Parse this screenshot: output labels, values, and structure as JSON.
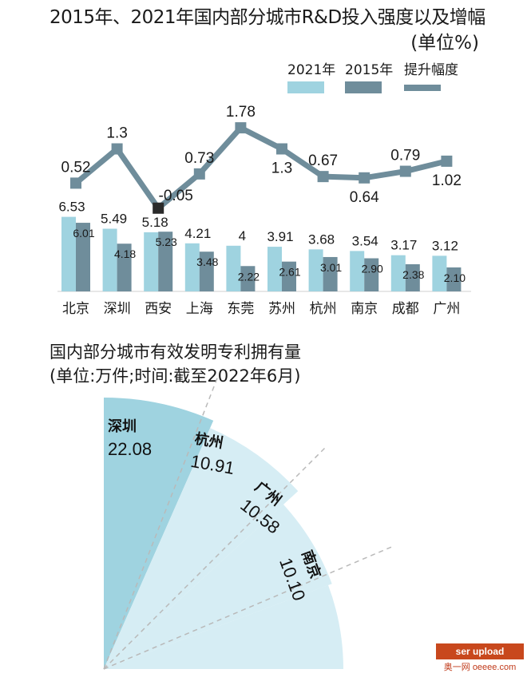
{
  "chart_data": [
    {
      "type": "bar",
      "title": "2015年、2021年国内部分城市R&D投入强度以及增幅",
      "unit": "(单位%)",
      "categories": [
        "北京",
        "深圳",
        "西安",
        "上海",
        "东莞",
        "苏州",
        "杭州",
        "南京",
        "成都",
        "广州"
      ],
      "series": [
        {
          "name": "2021年",
          "values": [
            6.53,
            5.49,
            5.18,
            4.21,
            4,
            3.91,
            3.68,
            3.54,
            3.17,
            3.12
          ],
          "labels": [
            "6.53",
            "5.49",
            "5.18",
            "4.21",
            "4",
            "3.91",
            "3.68",
            "3.54",
            "3.17",
            "3.12"
          ]
        },
        {
          "name": "2015年",
          "values": [
            6.01,
            4.18,
            5.23,
            3.48,
            2.22,
            2.61,
            3.01,
            2.9,
            2.38,
            2.1
          ],
          "labels": [
            "6.01",
            "4.18",
            "5.23",
            "3.48",
            "2.22",
            "2.61",
            "3.01",
            "2.90",
            "2.38",
            "2.10"
          ]
        },
        {
          "name": "提升幅度",
          "type": "line",
          "values": [
            0.52,
            1.3,
            -0.05,
            0.73,
            1.78,
            1.3,
            0.67,
            0.64,
            0.79,
            1.02
          ],
          "labels": [
            "0.52",
            "1.3",
            "-0.05",
            "0.73",
            "1.78",
            "1.3",
            "0.67",
            "0.64",
            "0.79",
            "1.02"
          ]
        }
      ],
      "legend_position": "top-right",
      "grid": false
    },
    {
      "type": "pie",
      "title": "国内部分城市有效发明专利拥有量",
      "unit": "(单位:万件;时间:截至2022年6月)",
      "categories": [
        "深圳",
        "杭州",
        "广州",
        "南京"
      ],
      "values": [
        22.08,
        10.91,
        10.58,
        10.1
      ],
      "labels": [
        "22.08",
        "10.91",
        "10.58",
        "10.10"
      ]
    }
  ],
  "colors": {
    "bar_2021": "#9fd3e0",
    "bar_2015": "#6f8d9b",
    "line": "#6f8d9b",
    "marker_negative": "#2b2b2b",
    "sector_dark": "#9fd3e0",
    "sector_light": "#d6edf4",
    "dashed_divider": "#b9b9b9"
  },
  "watermark": {
    "brand": "奥一网",
    "domain": "oeeee.com",
    "corner_text": "ser upload"
  }
}
